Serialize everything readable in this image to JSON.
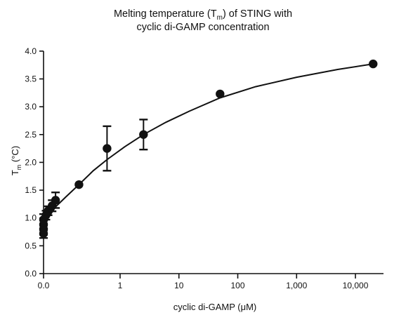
{
  "chart_data": {
    "type": "scatter",
    "title_line1": "Melting temperature (T",
    "title_sub": "m",
    "title_line1_end": ") of STING with",
    "title_line2": "cyclic di-GAMP concentration",
    "xlabel": "cyclic di-GAMP (μM)",
    "ylabel_main": "T",
    "ylabel_sub": "m",
    "ylabel_unit": " (°C)",
    "x_scale": "log",
    "xlim": [
      0.05,
      30000
    ],
    "ylim": [
      0,
      4.2
    ],
    "x_ticks": [
      {
        "value": 0.05,
        "label": "0.0"
      },
      {
        "value": 1,
        "label": "1"
      },
      {
        "value": 10,
        "label": "10"
      },
      {
        "value": 100,
        "label": "100"
      },
      {
        "value": 1000,
        "label": "1,000"
      },
      {
        "value": 10000,
        "label": "10,000"
      }
    ],
    "y_ticks": [
      {
        "value": 0,
        "label": "0.0"
      },
      {
        "value": 0.5,
        "label": "0.5"
      },
      {
        "value": 1.0,
        "label": "1.0"
      },
      {
        "value": 1.5,
        "label": "1.5"
      },
      {
        "value": 2.0,
        "label": "2.0"
      },
      {
        "value": 2.5,
        "label": "2.5"
      },
      {
        "value": 3.0,
        "label": "3.0"
      },
      {
        "value": 3.5,
        "label": "3.5"
      },
      {
        "value": 4.0,
        "label": "4.0"
      }
    ],
    "points": [
      {
        "x": 0.05,
        "y": 0.72,
        "err": 0.08
      },
      {
        "x": 0.05,
        "y": 0.8,
        "err": 0.1
      },
      {
        "x": 0.05,
        "y": 0.88,
        "err": 0.1
      },
      {
        "x": 0.05,
        "y": 0.97,
        "err": 0.1
      },
      {
        "x": 0.055,
        "y": 1.05,
        "err": 0.08
      },
      {
        "x": 0.06,
        "y": 1.13,
        "err": 0.08
      },
      {
        "x": 0.07,
        "y": 1.22,
        "err": 0.1
      },
      {
        "x": 0.08,
        "y": 1.32,
        "err": 0.14
      },
      {
        "x": 0.2,
        "y": 1.6,
        "err": 0
      },
      {
        "x": 0.6,
        "y": 2.25,
        "err": 0.4
      },
      {
        "x": 2.5,
        "y": 2.5,
        "err": 0.27
      },
      {
        "x": 50,
        "y": 3.23,
        "err": 0
      },
      {
        "x": 20000,
        "y": 3.77,
        "err": 0
      }
    ],
    "curve": [
      {
        "x": 0.05,
        "y": 0.8
      },
      {
        "x": 0.06,
        "y": 1.0
      },
      {
        "x": 0.08,
        "y": 1.2
      },
      {
        "x": 0.12,
        "y": 1.38
      },
      {
        "x": 0.2,
        "y": 1.6
      },
      {
        "x": 0.35,
        "y": 1.85
      },
      {
        "x": 0.6,
        "y": 2.05
      },
      {
        "x": 1.2,
        "y": 2.28
      },
      {
        "x": 2.5,
        "y": 2.5
      },
      {
        "x": 6,
        "y": 2.72
      },
      {
        "x": 15,
        "y": 2.92
      },
      {
        "x": 50,
        "y": 3.16
      },
      {
        "x": 200,
        "y": 3.36
      },
      {
        "x": 1000,
        "y": 3.53
      },
      {
        "x": 5000,
        "y": 3.67
      },
      {
        "x": 20000,
        "y": 3.77
      }
    ],
    "grid": false,
    "legend": "none"
  }
}
